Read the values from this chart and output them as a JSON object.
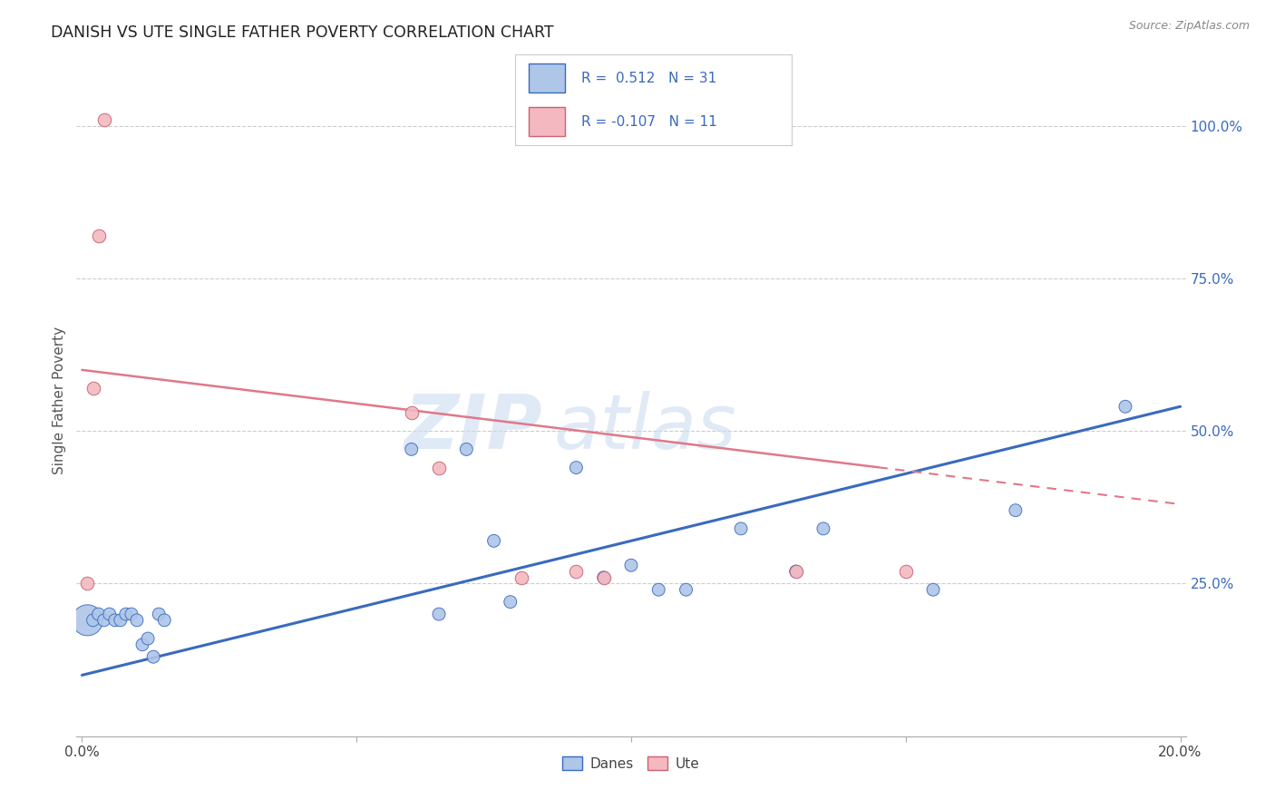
{
  "title": "DANISH VS UTE SINGLE FATHER POVERTY CORRELATION CHART",
  "source": "Source: ZipAtlas.com",
  "ylabel_label": "Single Father Poverty",
  "x_min": 0.0,
  "x_max": 0.2,
  "y_min": 0.0,
  "y_max": 1.1,
  "x_ticks": [
    0.0,
    0.05,
    0.1,
    0.15,
    0.2
  ],
  "y_ticks": [
    0.0,
    0.25,
    0.5,
    0.75,
    1.0
  ],
  "danes_color": "#aec6e8",
  "ute_color": "#f4b8c0",
  "danes_line_color": "#3a6abf",
  "ute_line_color": "#e07888",
  "danes_R": 0.512,
  "danes_N": 31,
  "ute_R": -0.107,
  "ute_N": 11,
  "legend_danes_label": "Danes",
  "legend_ute_label": "Ute",
  "watermark_zip": "ZIP",
  "watermark_atlas": "atlas",
  "danes_x": [
    0.001,
    0.002,
    0.003,
    0.004,
    0.005,
    0.006,
    0.007,
    0.008,
    0.009,
    0.01,
    0.011,
    0.012,
    0.013,
    0.014,
    0.015,
    0.06,
    0.065,
    0.07,
    0.075,
    0.078,
    0.09,
    0.095,
    0.1,
    0.105,
    0.11,
    0.12,
    0.13,
    0.135,
    0.155,
    0.17,
    0.19
  ],
  "danes_y": [
    0.19,
    0.19,
    0.2,
    0.19,
    0.2,
    0.19,
    0.19,
    0.2,
    0.2,
    0.19,
    0.15,
    0.16,
    0.13,
    0.2,
    0.19,
    0.47,
    0.2,
    0.47,
    0.32,
    0.22,
    0.44,
    0.26,
    0.28,
    0.24,
    0.24,
    0.34,
    0.27,
    0.34,
    0.24,
    0.37,
    0.54
  ],
  "danes_sizes": [
    600,
    100,
    100,
    100,
    100,
    100,
    100,
    100,
    100,
    100,
    100,
    100,
    100,
    100,
    100,
    100,
    100,
    100,
    100,
    100,
    100,
    100,
    100,
    100,
    100,
    100,
    100,
    100,
    100,
    100,
    100
  ],
  "ute_x": [
    0.001,
    0.002,
    0.003,
    0.004,
    0.06,
    0.065,
    0.08,
    0.09,
    0.095,
    0.13,
    0.15
  ],
  "ute_y": [
    0.25,
    0.57,
    0.82,
    1.01,
    0.53,
    0.44,
    0.26,
    0.27,
    0.26,
    0.27,
    0.27
  ],
  "blues_line_x0": 0.0,
  "blues_line_x1": 0.2,
  "blues_line_y0": 0.1,
  "blues_line_y1": 0.54,
  "ute_line_x0": 0.0,
  "ute_line_x1": 0.2,
  "ute_line_y0": 0.6,
  "ute_line_y1": 0.38
}
